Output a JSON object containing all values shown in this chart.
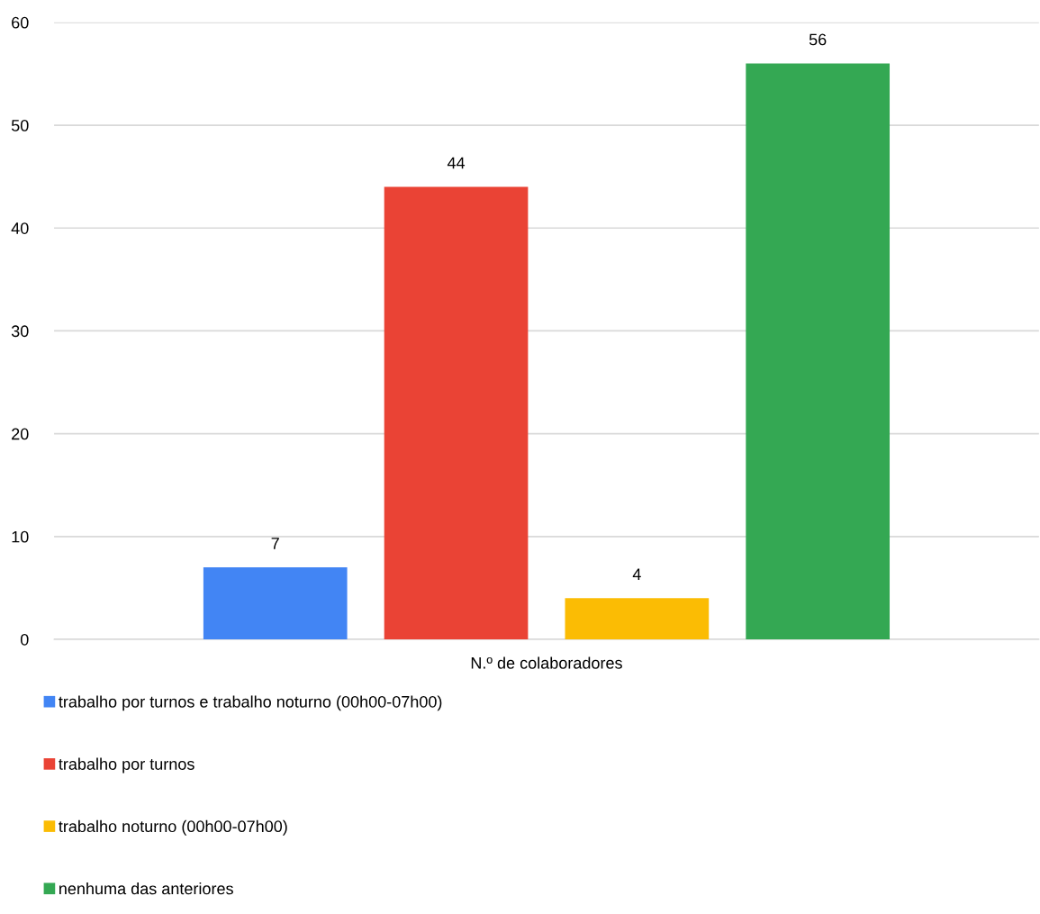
{
  "chart_data": {
    "type": "bar",
    "categories": [
      "N.º de colaboradores"
    ],
    "series": [
      {
        "name": "trabalho por turnos e trabalho noturno (00h00-07h00)",
        "color": "#4285f4",
        "values": [
          7
        ]
      },
      {
        "name": "trabalho por turnos",
        "color": "#ea4335",
        "values": [
          44
        ]
      },
      {
        "name": "trabalho noturno (00h00-07h00)",
        "color": "#fbbc04",
        "values": [
          4
        ]
      },
      {
        "name": "nenhuma das anteriores",
        "color": "#34a853",
        "values": [
          56
        ]
      }
    ],
    "ylim": [
      0,
      60
    ],
    "yticks": [
      0,
      10,
      20,
      30,
      40,
      50,
      60
    ],
    "grid": "y",
    "legend": "bottom",
    "data_labels": true
  }
}
